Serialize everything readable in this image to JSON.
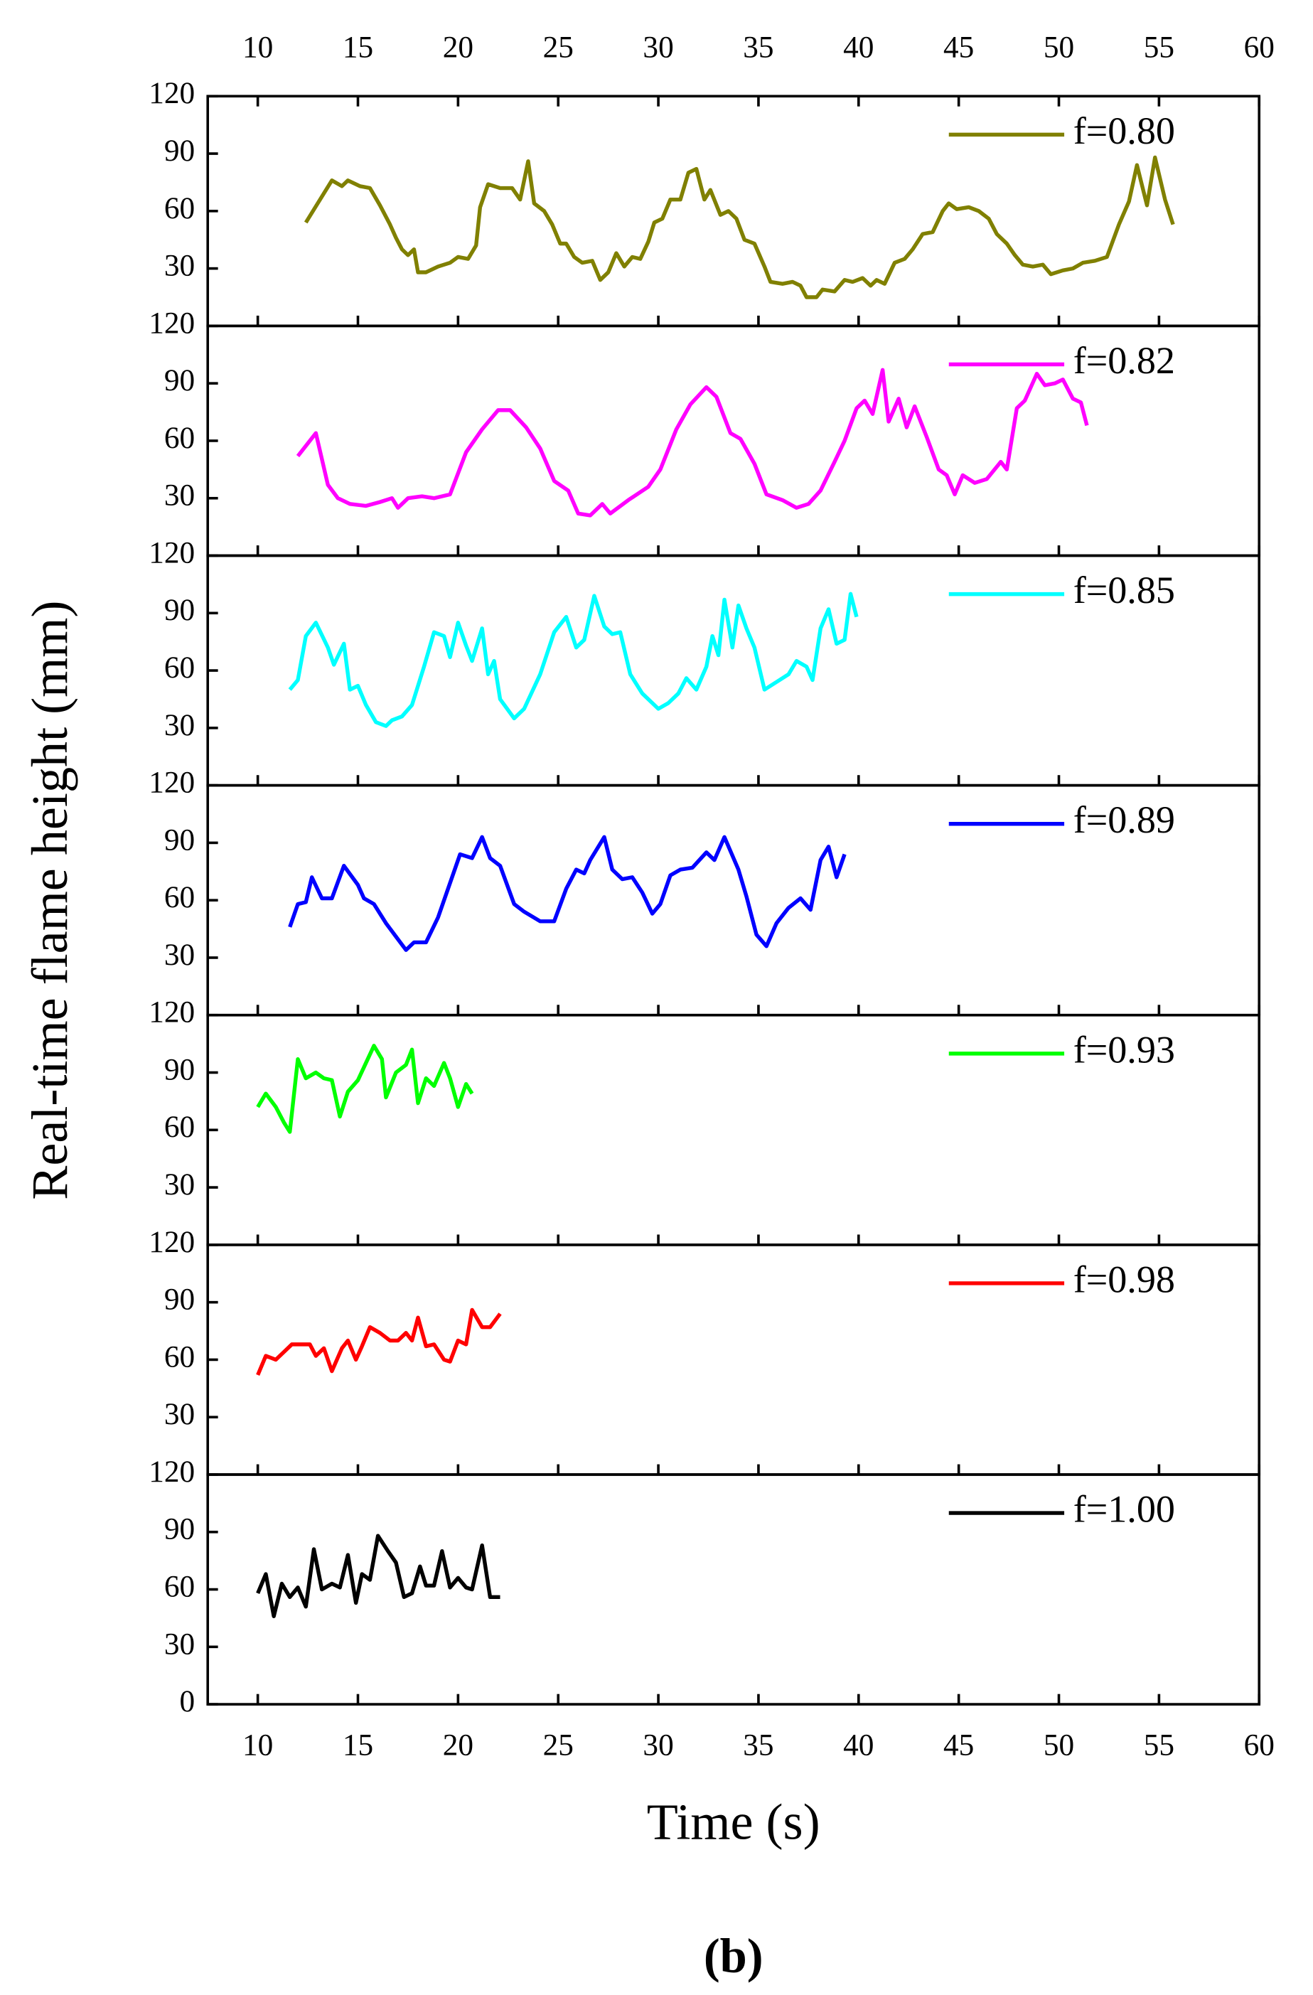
{
  "ylabel": "Real-time flame height (mm)",
  "caption": "(b)",
  "chart_data": [
    {
      "type": "line",
      "xlim": [
        7.5,
        60
      ],
      "xticks": [
        10,
        15,
        20,
        25,
        30,
        35,
        40,
        45,
        50,
        55,
        60
      ],
      "ylim": [
        0,
        120
      ],
      "yticks": [
        30,
        60,
        90,
        120
      ],
      "legend": "upper right",
      "series": [
        {
          "name": "f=0.80",
          "color": "#808000",
          "x": [
            12.4,
            13.7,
            14.2,
            14.5,
            15.1,
            15.6,
            16.1,
            16.6,
            16.9,
            17.2,
            17.5,
            17.8,
            18.0,
            18.4,
            19.0,
            19.6,
            20.0,
            20.5,
            20.9,
            21.1,
            21.5,
            22.1,
            22.7,
            23.1,
            23.5,
            23.8,
            24.3,
            24.7,
            25.1,
            25.4,
            25.8,
            26.2,
            26.7,
            27.1,
            27.5,
            27.9,
            28.3,
            28.7,
            29.1,
            29.5,
            29.8,
            30.2,
            30.6,
            31.1,
            31.5,
            31.9,
            32.3,
            32.6,
            33.1,
            33.5,
            33.9,
            34.3,
            34.8,
            35.3,
            35.6,
            36.2,
            36.7,
            37.1,
            37.4,
            37.9,
            38.2,
            38.8,
            39.3,
            39.7,
            40.2,
            40.6,
            40.9,
            41.3,
            41.8,
            42.3,
            42.7,
            43.2,
            43.7,
            44.2,
            44.5,
            44.9,
            45.5,
            46.0,
            46.5,
            46.9,
            47.4,
            47.8,
            48.2,
            48.7,
            49.2,
            49.6,
            50.2,
            50.7,
            51.2,
            51.8,
            52.4,
            53.0,
            53.5,
            53.9,
            54.4,
            54.8,
            55.3,
            55.7
          ],
          "values": [
            54,
            76,
            73,
            76,
            73,
            72,
            63,
            53,
            46,
            40,
            37,
            40,
            28,
            28,
            31,
            33,
            36,
            35,
            42,
            62,
            74,
            72,
            72,
            66,
            86,
            64,
            60,
            53,
            43,
            43,
            36,
            33,
            34,
            24,
            28,
            38,
            31,
            36,
            35,
            44,
            54,
            56,
            66,
            66,
            80,
            82,
            66,
            71,
            58,
            60,
            56,
            45,
            43,
            31,
            23,
            22,
            23,
            21,
            15,
            15,
            19,
            18,
            24,
            23,
            25,
            21,
            24,
            22,
            33,
            35,
            40,
            48,
            49,
            60,
            64,
            61,
            62,
            60,
            56,
            48,
            43,
            37,
            32,
            31,
            32,
            27,
            29,
            30,
            33,
            34,
            36,
            53,
            65,
            84,
            63,
            88,
            66,
            53
          ]
        }
      ]
    },
    {
      "type": "line",
      "xlim": [
        7.5,
        60
      ],
      "xticks": [
        10,
        15,
        20,
        25,
        30,
        35,
        40,
        45,
        50,
        55,
        60
      ],
      "ylim": [
        0,
        120
      ],
      "yticks": [
        30,
        60,
        90,
        120
      ],
      "legend": "upper right",
      "series": [
        {
          "name": "f=0.82",
          "color": "#ff00ff",
          "x": [
            12.0,
            12.9,
            13.5,
            14.0,
            14.6,
            15.4,
            16.1,
            16.7,
            17.0,
            17.5,
            18.2,
            18.8,
            19.6,
            20.4,
            21.2,
            22.0,
            22.6,
            23.4,
            24.1,
            24.8,
            25.5,
            26.0,
            26.6,
            27.2,
            27.6,
            28.5,
            29.5,
            30.1,
            30.9,
            31.6,
            32.4,
            32.9,
            33.6,
            34.1,
            34.8,
            35.4,
            36.2,
            36.9,
            37.5,
            38.1,
            38.8,
            39.3,
            39.9,
            40.3,
            40.7,
            41.2,
            41.5,
            42.0,
            42.4,
            42.8,
            43.4,
            44.0,
            44.4,
            44.8,
            45.2,
            45.8,
            46.4,
            47.1,
            47.4,
            47.9,
            48.3,
            48.9,
            49.3,
            49.8,
            50.2,
            50.7,
            51.1,
            51.4
          ],
          "values": [
            52,
            64,
            37,
            30,
            27,
            26,
            28,
            30,
            25,
            30,
            31,
            30,
            32,
            54,
            66,
            76,
            76,
            67,
            56,
            39,
            34,
            22,
            21,
            27,
            22,
            29,
            36,
            45,
            66,
            79,
            88,
            83,
            64,
            61,
            48,
            32,
            29,
            25,
            27,
            34,
            49,
            60,
            77,
            81,
            74,
            97,
            70,
            82,
            67,
            78,
            62,
            45,
            42,
            32,
            42,
            38,
            40,
            49,
            45,
            77,
            81,
            95,
            89,
            90,
            92,
            82,
            80,
            68
          ]
        }
      ]
    },
    {
      "type": "line",
      "xlim": [
        7.5,
        60
      ],
      "xticks": [
        10,
        15,
        20,
        25,
        30,
        35,
        40,
        45,
        50,
        55,
        60
      ],
      "ylim": [
        0,
        120
      ],
      "yticks": [
        30,
        60,
        90,
        120
      ],
      "legend": "upper right",
      "series": [
        {
          "name": "f=0.85",
          "color": "#00ffff",
          "x": [
            11.6,
            12.0,
            12.4,
            12.9,
            13.5,
            13.8,
            14.3,
            14.6,
            15.0,
            15.4,
            15.9,
            16.4,
            16.7,
            17.2,
            17.7,
            18.3,
            18.8,
            19.3,
            19.6,
            20.0,
            20.4,
            20.7,
            21.2,
            21.5,
            21.8,
            22.1,
            22.8,
            23.3,
            24.1,
            24.8,
            25.4,
            25.9,
            26.3,
            26.8,
            27.3,
            27.7,
            28.1,
            28.6,
            29.2,
            30.0,
            30.5,
            31.0,
            31.4,
            31.9,
            32.4,
            32.7,
            33.0,
            33.3,
            33.7,
            34.0,
            34.4,
            34.8,
            35.3,
            35.9,
            36.5,
            36.9,
            37.4,
            37.7,
            38.1,
            38.5,
            38.9,
            39.3,
            39.6,
            39.9
          ],
          "values": [
            50,
            55,
            78,
            85,
            72,
            63,
            74,
            50,
            52,
            42,
            33,
            31,
            34,
            36,
            42,
            62,
            80,
            78,
            67,
            85,
            73,
            65,
            82,
            58,
            65,
            45,
            35,
            40,
            58,
            80,
            88,
            72,
            76,
            99,
            83,
            79,
            80,
            58,
            48,
            40,
            43,
            48,
            56,
            50,
            62,
            78,
            68,
            97,
            72,
            94,
            82,
            72,
            50,
            54,
            58,
            65,
            62,
            55,
            82,
            92,
            74,
            76,
            100,
            88
          ]
        }
      ]
    },
    {
      "type": "line",
      "xlim": [
        7.5,
        60
      ],
      "xticks": [
        10,
        15,
        20,
        25,
        30,
        35,
        40,
        45,
        50,
        55,
        60
      ],
      "ylim": [
        0,
        120
      ],
      "yticks": [
        30,
        60,
        90,
        120
      ],
      "legend": "upper right",
      "series": [
        {
          "name": "f=0.89",
          "color": "#0000ff",
          "x": [
            11.6,
            12.0,
            12.4,
            12.7,
            13.2,
            13.7,
            14.3,
            15.0,
            15.3,
            15.8,
            16.4,
            16.9,
            17.4,
            17.8,
            18.4,
            19.0,
            19.6,
            20.1,
            20.7,
            21.2,
            21.6,
            22.1,
            22.8,
            23.3,
            24.1,
            24.8,
            25.4,
            25.9,
            26.3,
            26.6,
            27.3,
            27.7,
            28.2,
            28.7,
            29.2,
            29.7,
            30.1,
            30.6,
            31.1,
            31.7,
            32.4,
            32.8,
            33.3,
            34.0,
            34.4,
            34.9,
            35.4,
            35.9,
            36.5,
            37.1,
            37.6,
            38.1,
            38.5,
            38.9,
            39.3
          ],
          "values": [
            46,
            58,
            59,
            72,
            61,
            61,
            78,
            68,
            61,
            58,
            48,
            41,
            34,
            38,
            38,
            51,
            69,
            84,
            82,
            93,
            82,
            78,
            58,
            54,
            49,
            49,
            66,
            76,
            74,
            81,
            93,
            76,
            71,
            72,
            64,
            53,
            58,
            73,
            76,
            77,
            85,
            81,
            93,
            76,
            62,
            42,
            36,
            48,
            56,
            61,
            55,
            81,
            88,
            72,
            84
          ]
        }
      ]
    },
    {
      "type": "line",
      "xlim": [
        7.5,
        60
      ],
      "xticks": [
        10,
        15,
        20,
        25,
        30,
        35,
        40,
        45,
        50,
        55,
        60
      ],
      "ylim": [
        0,
        120
      ],
      "yticks": [
        30,
        60,
        90,
        120
      ],
      "legend": "upper right",
      "series": [
        {
          "name": "f=0.93",
          "color": "#00ff00",
          "x": [
            10.0,
            10.4,
            10.9,
            11.3,
            11.6,
            12.0,
            12.4,
            12.9,
            13.3,
            13.7,
            14.1,
            14.5,
            15.0,
            15.4,
            15.8,
            16.2,
            16.4,
            16.9,
            17.4,
            17.7,
            18.0,
            18.4,
            18.8,
            19.3,
            19.6,
            20.0,
            20.4,
            20.7
          ],
          "values": [
            72,
            79,
            72,
            64,
            59,
            97,
            87,
            90,
            87,
            86,
            67,
            80,
            86,
            95,
            104,
            97,
            77,
            90,
            94,
            102,
            74,
            87,
            83,
            95,
            87,
            72,
            84,
            79
          ]
        }
      ]
    },
    {
      "type": "line",
      "xlim": [
        7.5,
        60
      ],
      "xticks": [
        10,
        15,
        20,
        25,
        30,
        35,
        40,
        45,
        50,
        55,
        60
      ],
      "ylim": [
        0,
        120
      ],
      "yticks": [
        30,
        60,
        90,
        120
      ],
      "legend": "upper right",
      "series": [
        {
          "name": "f=0.98",
          "color": "#ff0000",
          "x": [
            10.0,
            10.4,
            10.9,
            11.3,
            11.7,
            12.2,
            12.6,
            12.9,
            13.3,
            13.7,
            14.2,
            14.5,
            14.9,
            15.2,
            15.6,
            16.1,
            16.6,
            17.0,
            17.4,
            17.7,
            18.0,
            18.4,
            18.8,
            19.3,
            19.6,
            20.0,
            20.4,
            20.7,
            21.2,
            21.6,
            22.1
          ],
          "values": [
            52,
            62,
            60,
            64,
            68,
            68,
            68,
            62,
            66,
            54,
            66,
            70,
            60,
            67,
            77,
            74,
            70,
            70,
            74,
            70,
            82,
            67,
            68,
            60,
            59,
            70,
            68,
            86,
            77,
            77,
            84
          ]
        }
      ]
    },
    {
      "type": "line",
      "xlim": [
        7.5,
        60
      ],
      "xticks": [
        10,
        15,
        20,
        25,
        30,
        35,
        40,
        45,
        50,
        55,
        60
      ],
      "ylim": [
        0,
        120
      ],
      "yticks": [
        0,
        30,
        60,
        90,
        120
      ],
      "legend": "upper right",
      "xlabel": "Time (s)",
      "series": [
        {
          "name": "f=1.00",
          "color": "#000000",
          "x": [
            10.0,
            10.4,
            10.8,
            11.2,
            11.6,
            12.0,
            12.4,
            12.8,
            13.2,
            13.7,
            14.1,
            14.5,
            14.9,
            15.2,
            15.6,
            16.0,
            16.5,
            16.9,
            17.3,
            17.7,
            18.1,
            18.4,
            18.8,
            19.2,
            19.6,
            20.0,
            20.4,
            20.7,
            21.2,
            21.6,
            22.1
          ],
          "values": [
            58,
            68,
            46,
            63,
            56,
            61,
            51,
            81,
            60,
            63,
            61,
            78,
            53,
            68,
            65,
            88,
            80,
            74,
            56,
            58,
            72,
            62,
            62,
            80,
            61,
            66,
            61,
            60,
            83,
            56,
            56
          ]
        }
      ]
    }
  ]
}
